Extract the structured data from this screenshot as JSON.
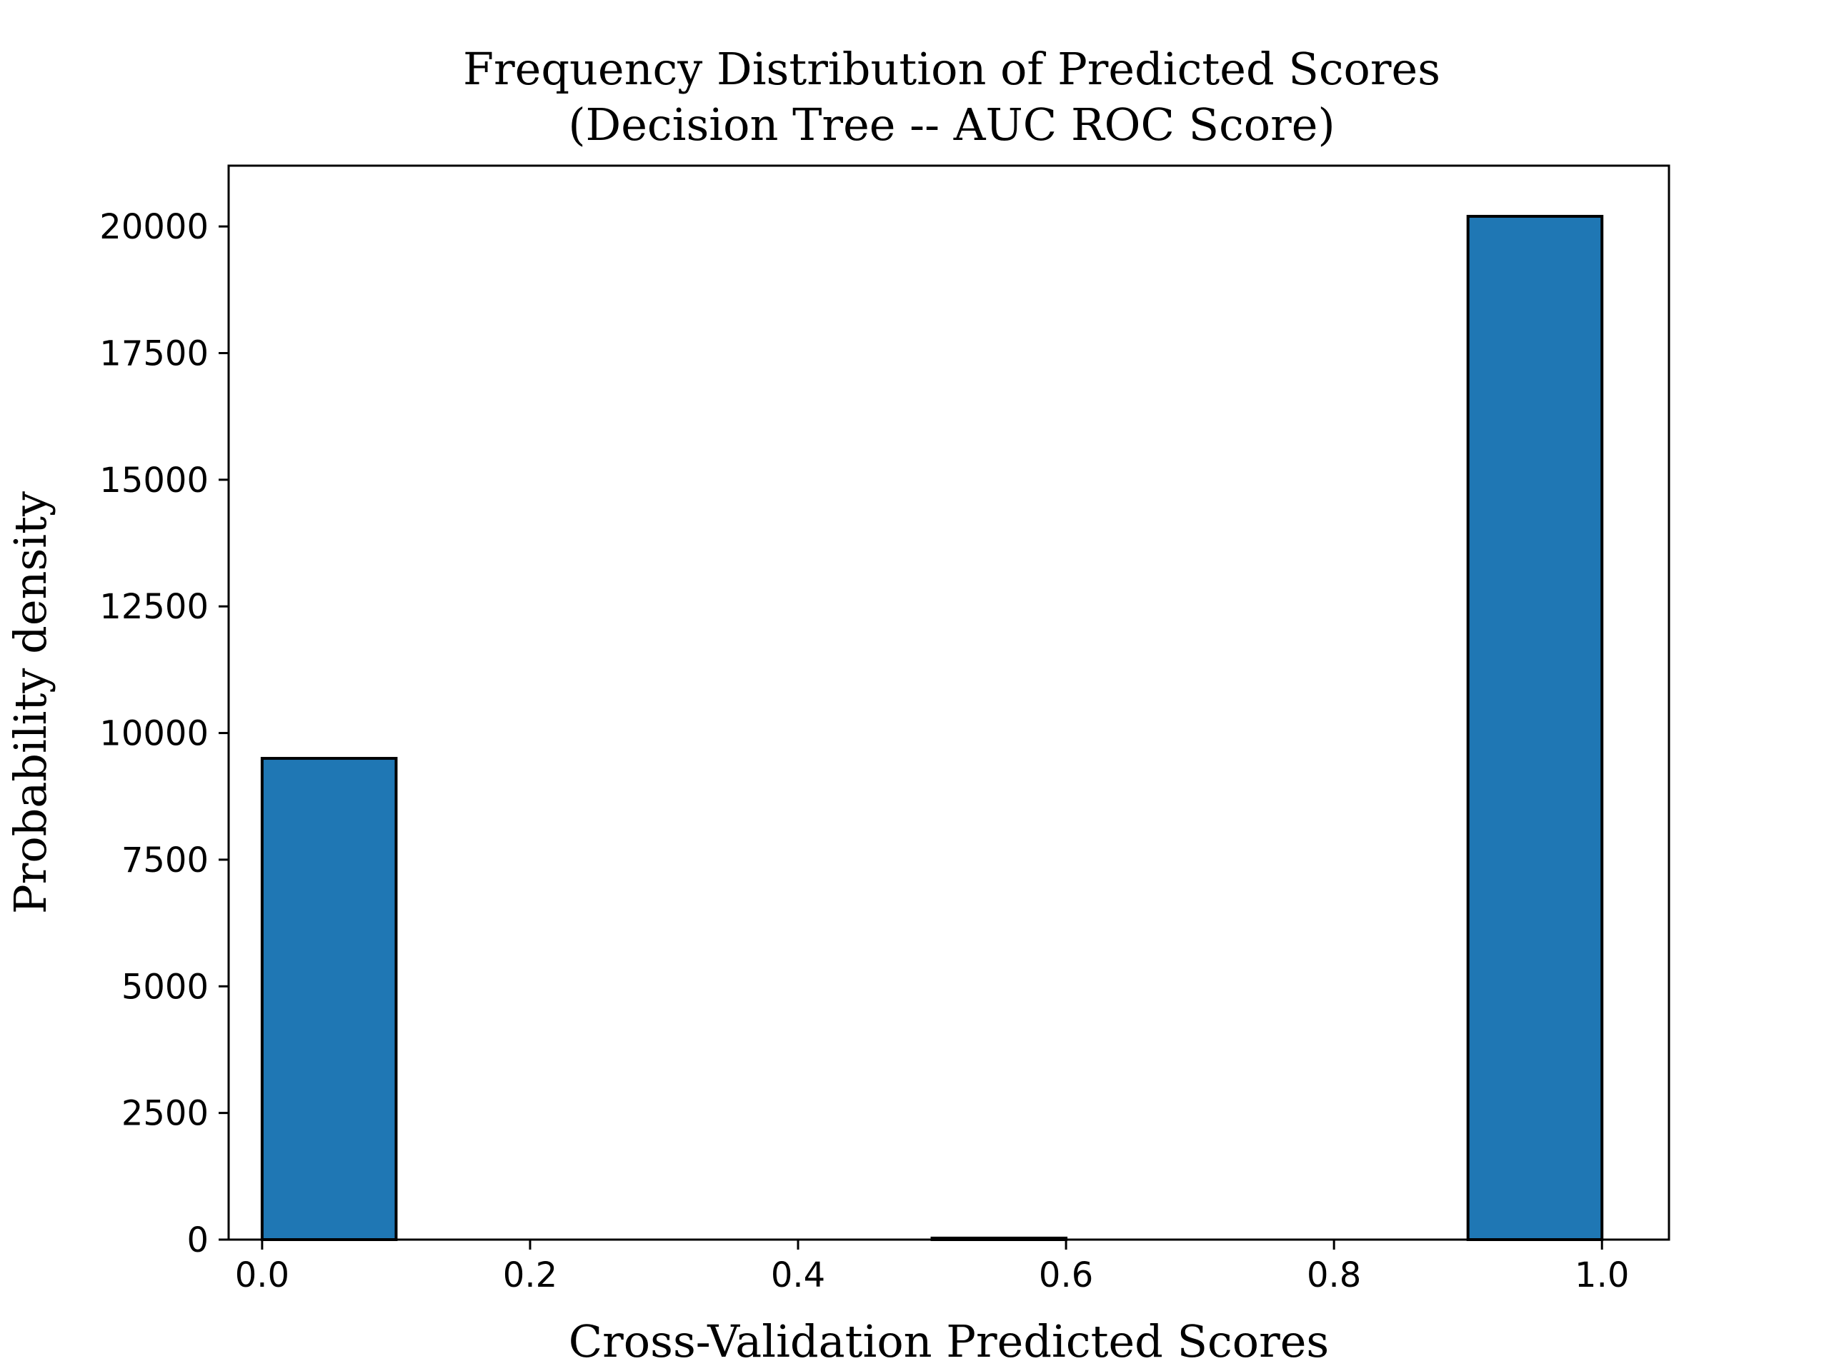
{
  "chart_data": {
    "type": "bar",
    "title": "Frequency Distribution of Predicted Scores",
    "subtitle": "(Decision Tree -- AUC ROC Score)",
    "xlabel": "Cross-Validation Predicted Scores",
    "ylabel": "Probability density",
    "xlim": [
      -0.025,
      1.05
    ],
    "ylim": [
      0,
      21200
    ],
    "x_ticks": [
      "0.0",
      "0.2",
      "0.4",
      "0.6",
      "0.8",
      "1.0"
    ],
    "y_ticks": [
      "0",
      "2500",
      "5000",
      "7500",
      "10000",
      "12500",
      "15000",
      "17500",
      "20000"
    ],
    "bins": [
      {
        "start": 0.0,
        "end": 0.1,
        "value": 9500
      },
      {
        "start": 0.1,
        "end": 0.2,
        "value": 0
      },
      {
        "start": 0.2,
        "end": 0.3,
        "value": 0
      },
      {
        "start": 0.3,
        "end": 0.4,
        "value": 0
      },
      {
        "start": 0.4,
        "end": 0.5,
        "value": 0
      },
      {
        "start": 0.5,
        "end": 0.6,
        "value": 30
      },
      {
        "start": 0.6,
        "end": 0.7,
        "value": 0
      },
      {
        "start": 0.7,
        "end": 0.8,
        "value": 0
      },
      {
        "start": 0.8,
        "end": 0.9,
        "value": 0
      },
      {
        "start": 0.9,
        "end": 1.0,
        "value": 20200
      }
    ],
    "bar_color": "#1f77b4",
    "edge_color": "#000000",
    "grid": false,
    "legend": false
  }
}
